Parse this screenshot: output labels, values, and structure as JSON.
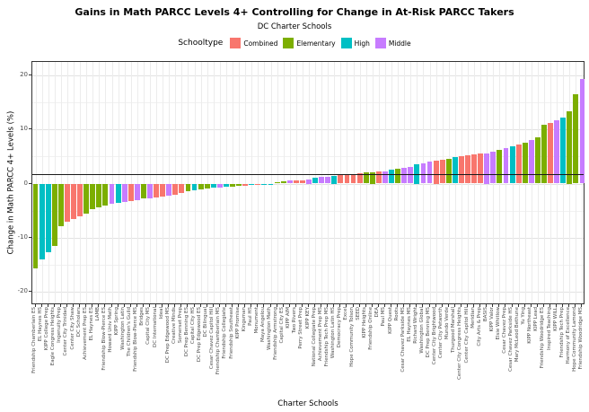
{
  "header": {
    "title": "Gains in Math PARCC Levels 4+ Controlling for Change in At-Risk PARCC Takers",
    "subtitle": "DC Charter Schools"
  },
  "legend": {
    "title": "Schooltype",
    "items": [
      {
        "label": "Combined",
        "color": "#F8766D"
      },
      {
        "label": "Elementary",
        "color": "#7CAE00"
      },
      {
        "label": "High",
        "color": "#00BFC4"
      },
      {
        "label": "Middle",
        "color": "#C77CFF"
      }
    ]
  },
  "axes": {
    "x_title": "Charter Schools",
    "y_title": "Change in Math PARCC 4+ Levels (%)",
    "y_ticks": [
      20,
      10,
      0,
      -10,
      -20
    ]
  },
  "chart_data": {
    "type": "bar",
    "title": "Gains in Math PARCC Levels 4+ Controlling for Change in At-Risk PARCC Takers",
    "subtitle": "DC Charter Schools",
    "xlabel": "Charter Schools",
    "ylabel": "Change in Math PARCC 4+ Levels (%)",
    "ylim": [
      -22.4,
      22.4
    ],
    "grid": true,
    "legend_position": "top",
    "reference_line_y": 1.8,
    "type_colors": {
      "Combined": "#F8766D",
      "Elementary": "#7CAE00",
      "High": "#00BFC4",
      "Middle": "#C77CFF"
    },
    "series": [
      {
        "school": "Friendship Chamberlain ES",
        "schooltype": "Elementary",
        "value": -15.6
      },
      {
        "school": "EL Haynes HS",
        "schooltype": "High",
        "value": -14.0
      },
      {
        "school": "KIPP College Prep",
        "schooltype": "High",
        "value": -12.6
      },
      {
        "school": "Eagle Congress Heights",
        "schooltype": "Elementary",
        "value": -11.5
      },
      {
        "school": "Ingenuity Prep",
        "schooltype": "Elementary",
        "value": -7.9
      },
      {
        "school": "Center City Trinidad",
        "schooltype": "Combined",
        "value": -7.1
      },
      {
        "school": "Center City Shaw",
        "schooltype": "Combined",
        "value": -6.6
      },
      {
        "school": "DC Scholars",
        "schooltype": "Combined",
        "value": -6.0
      },
      {
        "school": "Achievement Prep ES",
        "schooltype": "Elementary",
        "value": -5.5
      },
      {
        "school": "EL Haynes ES",
        "schooltype": "Elementary",
        "value": -4.7
      },
      {
        "school": "LAMB",
        "schooltype": "Elementary",
        "value": -4.3
      },
      {
        "school": "Friendship Blow-Pierce ES",
        "schooltype": "Elementary",
        "value": -4.1
      },
      {
        "school": "Howard Univ Math",
        "schooltype": "Middle",
        "value": -3.8
      },
      {
        "school": "KIPP Spring",
        "schooltype": "High",
        "value": -3.6
      },
      {
        "school": "Washington Latin",
        "schooltype": "Middle",
        "value": -3.4
      },
      {
        "school": "The Children's Guild",
        "schooltype": "Combined",
        "value": -3.2
      },
      {
        "school": "Friendship Blow-Pierce MS",
        "schooltype": "Middle",
        "value": -3.0
      },
      {
        "school": "Bridges",
        "schooltype": "Elementary",
        "value": -2.8
      },
      {
        "school": "Capital City MS",
        "schooltype": "Middle",
        "value": -2.7
      },
      {
        "school": "DC International",
        "schooltype": "Combined",
        "value": -2.5
      },
      {
        "school": "Ideal",
        "schooltype": "Combined",
        "value": -2.4
      },
      {
        "school": "DC Prep Edgewood MS",
        "schooltype": "Middle",
        "value": -2.2
      },
      {
        "school": "Creative Minds",
        "schooltype": "Combined",
        "value": -2.0
      },
      {
        "school": "Somerset Prep",
        "schooltype": "Combined",
        "value": -1.7
      },
      {
        "school": "DC Prep Benning ES",
        "schooltype": "Elementary",
        "value": -1.4
      },
      {
        "school": "Capital City HS",
        "schooltype": "High",
        "value": -1.2
      },
      {
        "school": "DC Prep Edgewood ES",
        "schooltype": "Elementary",
        "value": -1.0
      },
      {
        "school": "DC Bilingual",
        "schooltype": "Elementary",
        "value": -0.9
      },
      {
        "school": "Cesar Chavez Capitol Hill",
        "schooltype": "High",
        "value": -0.8
      },
      {
        "school": "Friendship Chamberlain MS",
        "schooltype": "Middle",
        "value": -0.7
      },
      {
        "school": "Friendship Collegiate",
        "schooltype": "High",
        "value": -0.6
      },
      {
        "school": "Friendship Southeast",
        "schooltype": "Elementary",
        "value": -0.5
      },
      {
        "school": "KIPP Promise",
        "schooltype": "Elementary",
        "value": -0.45
      },
      {
        "school": "Kingsman",
        "schooltype": "Combined",
        "value": -0.35
      },
      {
        "school": "Paul HS",
        "schooltype": "High",
        "value": -0.3
      },
      {
        "school": "Monument",
        "schooltype": "Combined",
        "value": -0.25
      },
      {
        "school": "Maya Angelou",
        "schooltype": "High",
        "value": -0.2
      },
      {
        "school": "Washington Math",
        "schooltype": "High",
        "value": -0.1
      },
      {
        "school": "Friendship Armstrong",
        "schooltype": "Elementary",
        "value": 0.3
      },
      {
        "school": "Capital City ES",
        "schooltype": "Elementary",
        "value": 0.4
      },
      {
        "school": "KIPP AIM",
        "schooltype": "Middle",
        "value": 0.5
      },
      {
        "school": "Two Rivers",
        "schooltype": "Combined",
        "value": 0.55
      },
      {
        "school": "Perry Street Prep",
        "schooltype": "Combined",
        "value": 0.6
      },
      {
        "school": "KIPP KEY",
        "schooltype": "Middle",
        "value": 0.7
      },
      {
        "school": "National Collegiate Prep",
        "schooltype": "High",
        "value": 1.0
      },
      {
        "school": "Achievement Prep MS",
        "schooltype": "Middle",
        "value": 1.2
      },
      {
        "school": "Friendship Tech Prep MS",
        "schooltype": "Middle",
        "value": 1.3
      },
      {
        "school": "Washington Latin HS",
        "schooltype": "High",
        "value": 1.4
      },
      {
        "school": "Democracy Prep",
        "schooltype": "Combined",
        "value": 1.5
      },
      {
        "school": "Excel",
        "schooltype": "Combined",
        "value": 1.6
      },
      {
        "school": "Hope Community Tolson",
        "schooltype": "Combined",
        "value": 1.7
      },
      {
        "school": "SEED",
        "schooltype": "Combined",
        "value": 1.9
      },
      {
        "school": "KIPP Heights",
        "schooltype": "Elementary",
        "value": 2.0
      },
      {
        "school": "Friendship Online",
        "schooltype": "Elementary",
        "value": 2.1
      },
      {
        "school": "DEA",
        "schooltype": "Combined",
        "value": 2.2
      },
      {
        "school": "Paul MS",
        "schooltype": "Middle",
        "value": 2.3
      },
      {
        "school": "KIPP Quest",
        "schooltype": "High",
        "value": 2.5
      },
      {
        "school": "Roots",
        "schooltype": "Elementary",
        "value": 2.7
      },
      {
        "school": "Cesar Chavez Parkside MS",
        "schooltype": "Middle",
        "value": 2.9
      },
      {
        "school": "EL Haynes MS",
        "schooltype": "Middle",
        "value": 3.1
      },
      {
        "school": "Richard Wright",
        "schooltype": "High",
        "value": 3.5
      },
      {
        "school": "Washington Global",
        "schooltype": "Middle",
        "value": 3.8
      },
      {
        "school": "DC Prep Benning MS",
        "schooltype": "Middle",
        "value": 4.0
      },
      {
        "school": "Center City Brightwood",
        "schooltype": "Combined",
        "value": 4.2
      },
      {
        "school": "Center City Petworth",
        "schooltype": "Combined",
        "value": 4.4
      },
      {
        "school": "Mundo Verde",
        "schooltype": "Elementary",
        "value": 4.6
      },
      {
        "school": "Thurgood Marshall",
        "schooltype": "High",
        "value": 4.8
      },
      {
        "school": "Center City Congress Heights",
        "schooltype": "Combined",
        "value": 5.0
      },
      {
        "school": "Center City Capitol Hill",
        "schooltype": "Combined",
        "value": 5.2
      },
      {
        "school": "Meridian",
        "schooltype": "Combined",
        "value": 5.3
      },
      {
        "school": "City Arts & Prep",
        "schooltype": "Combined",
        "value": 5.5
      },
      {
        "school": "BASIS",
        "schooltype": "Middle",
        "value": 5.6
      },
      {
        "school": "KIPP Valor",
        "schooltype": "Middle",
        "value": 5.8
      },
      {
        "school": "Elsie Whitlow",
        "schooltype": "Elementary",
        "value": 6.2
      },
      {
        "school": "Cesar Chavez Prep",
        "schooltype": "Middle",
        "value": 6.5
      },
      {
        "school": "Cesar Chavez Parkside HS",
        "schooltype": "High",
        "value": 6.8
      },
      {
        "school": "Mary McLeod Bethune",
        "schooltype": "Combined",
        "value": 7.2
      },
      {
        "school": "Yu Ying",
        "schooltype": "Elementary",
        "value": 7.6
      },
      {
        "school": "KIPP Northeast",
        "schooltype": "Middle",
        "value": 8.0
      },
      {
        "school": "KIPP Lead",
        "schooltype": "Elementary",
        "value": 8.5
      },
      {
        "school": "Friendship Woodridge ES",
        "schooltype": "Elementary",
        "value": 10.8
      },
      {
        "school": "Inspired Teaching",
        "schooltype": "Combined",
        "value": 11.1
      },
      {
        "school": "KIPP WILL",
        "schooltype": "Middle",
        "value": 11.6
      },
      {
        "school": "Friendship Tech Prep",
        "schooltype": "High",
        "value": 12.2
      },
      {
        "school": "Harmony of Excellence",
        "schooltype": "Elementary",
        "value": 13.3
      },
      {
        "school": "Hope Community Lamond",
        "schooltype": "Elementary",
        "value": 16.5
      },
      {
        "school": "Friendship Woodridge MS",
        "schooltype": "Middle",
        "value": 19.3
      }
    ]
  }
}
